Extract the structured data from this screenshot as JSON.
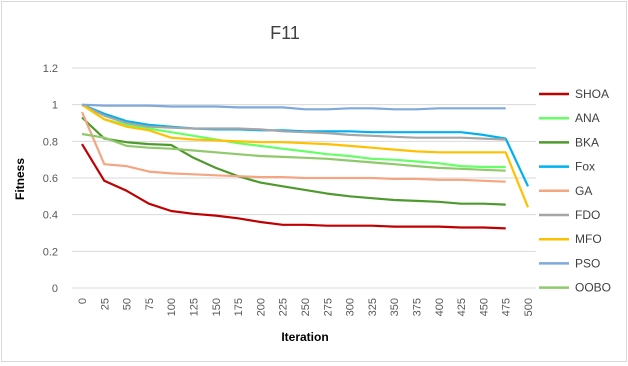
{
  "chart_data": {
    "type": "line",
    "title": "F11",
    "xlabel": "Iteration",
    "ylabel": "Fitness",
    "x": [
      0,
      25,
      50,
      75,
      100,
      125,
      150,
      175,
      200,
      225,
      250,
      275,
      300,
      325,
      350,
      375,
      400,
      425,
      450,
      475,
      500
    ],
    "ylim": [
      0,
      1.2
    ],
    "yticks": [
      "0",
      "0.2",
      "0.4",
      "0.6",
      "0.8",
      "1",
      "1.2"
    ],
    "grid": "horizontal",
    "legend_position": "right",
    "series": [
      {
        "name": "SHOA",
        "color": "#c00000",
        "values": [
          0.785,
          0.585,
          0.53,
          0.46,
          0.42,
          0.405,
          0.395,
          0.38,
          0.36,
          0.345,
          0.345,
          0.34,
          0.34,
          0.34,
          0.335,
          0.335,
          0.335,
          0.33,
          0.33,
          0.325,
          null
        ]
      },
      {
        "name": "ANA",
        "color": "#66ff66",
        "values": [
          1.0,
          0.92,
          0.89,
          0.87,
          0.85,
          0.83,
          0.81,
          0.79,
          0.775,
          0.76,
          0.745,
          0.73,
          0.72,
          0.705,
          0.7,
          0.69,
          0.68,
          0.665,
          0.66,
          0.66,
          null
        ]
      },
      {
        "name": "BKA",
        "color": "#4e9a2e",
        "values": [
          0.93,
          0.815,
          0.795,
          0.785,
          0.78,
          0.71,
          0.655,
          0.61,
          0.575,
          0.555,
          0.535,
          0.515,
          0.5,
          0.49,
          0.48,
          0.475,
          0.47,
          0.46,
          0.46,
          0.455,
          null
        ]
      },
      {
        "name": "Fox",
        "color": "#00b0f0",
        "values": [
          1.0,
          0.95,
          0.91,
          0.89,
          0.88,
          0.87,
          0.865,
          0.865,
          0.86,
          0.86,
          0.855,
          0.855,
          0.855,
          0.85,
          0.85,
          0.85,
          0.85,
          0.85,
          0.835,
          0.815,
          0.555
        ]
      },
      {
        "name": "GA",
        "color": "#f4a582",
        "values": [
          0.96,
          0.675,
          0.665,
          0.635,
          0.625,
          0.62,
          0.615,
          0.61,
          0.605,
          0.605,
          0.6,
          0.6,
          0.6,
          0.6,
          0.595,
          0.595,
          0.59,
          0.59,
          0.585,
          0.58,
          null
        ]
      },
      {
        "name": "FDO",
        "color": "#a6a6a6",
        "values": [
          1.0,
          0.94,
          0.9,
          0.88,
          0.875,
          0.87,
          0.87,
          0.87,
          0.865,
          0.855,
          0.85,
          0.845,
          0.835,
          0.83,
          0.825,
          0.82,
          0.82,
          0.82,
          0.815,
          0.81,
          null
        ]
      },
      {
        "name": "MFO",
        "color": "#ffc000",
        "values": [
          1.0,
          0.92,
          0.88,
          0.86,
          0.82,
          0.81,
          0.805,
          0.8,
          0.795,
          0.795,
          0.79,
          0.785,
          0.775,
          0.765,
          0.755,
          0.745,
          0.74,
          0.74,
          0.74,
          0.74,
          0.44
        ]
      },
      {
        "name": "PSO",
        "color": "#7fa8dc",
        "values": [
          1.0,
          0.995,
          0.995,
          0.995,
          0.99,
          0.99,
          0.99,
          0.985,
          0.985,
          0.985,
          0.975,
          0.975,
          0.98,
          0.98,
          0.975,
          0.975,
          0.98,
          0.98,
          0.98,
          0.98,
          null
        ]
      },
      {
        "name": "OOBO",
        "color": "#8fc96b",
        "values": [
          0.84,
          0.82,
          0.775,
          0.765,
          0.76,
          0.75,
          0.74,
          0.73,
          0.72,
          0.715,
          0.71,
          0.705,
          0.695,
          0.685,
          0.675,
          0.665,
          0.655,
          0.65,
          0.645,
          0.64,
          null
        ]
      }
    ]
  }
}
